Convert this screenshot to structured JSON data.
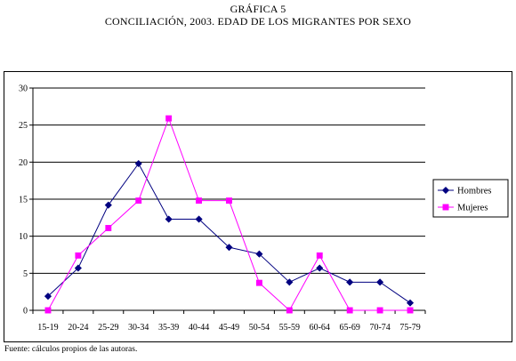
{
  "figure": {
    "label": "GRÁFICA 5",
    "title": "CONCILIACIÓN, 2003. EDAD DE LOS MIGRANTES POR SEXO",
    "source": "Fuente: cálculos propios de las autoras."
  },
  "chart_data": {
    "type": "line",
    "title": "CONCILIACIÓN, 2003. EDAD DE LOS MIGRANTES POR SEXO",
    "xlabel": "",
    "ylabel": "",
    "categories": [
      "15-19",
      "20-24",
      "25-29",
      "30-34",
      "35-39",
      "40-44",
      "45-49",
      "50-54",
      "55-59",
      "60-64",
      "65-69",
      "70-74",
      "75-79"
    ],
    "ylim": [
      0,
      30
    ],
    "yticks": [
      0,
      5,
      10,
      15,
      20,
      25,
      30
    ],
    "grid": "horizontal",
    "legend": "right",
    "series": [
      {
        "name": "Hombres",
        "color": "#000080",
        "marker": "diamond",
        "values": [
          1.9,
          5.7,
          14.2,
          19.8,
          12.3,
          12.3,
          8.5,
          7.6,
          3.8,
          5.7,
          3.8,
          3.8,
          1.0
        ]
      },
      {
        "name": "Mujeres",
        "color": "#FF00FF",
        "marker": "square",
        "values": [
          0.0,
          7.4,
          11.1,
          14.8,
          25.9,
          14.8,
          14.8,
          3.7,
          0.0,
          7.4,
          0.0,
          0.0,
          0.0
        ]
      }
    ]
  }
}
